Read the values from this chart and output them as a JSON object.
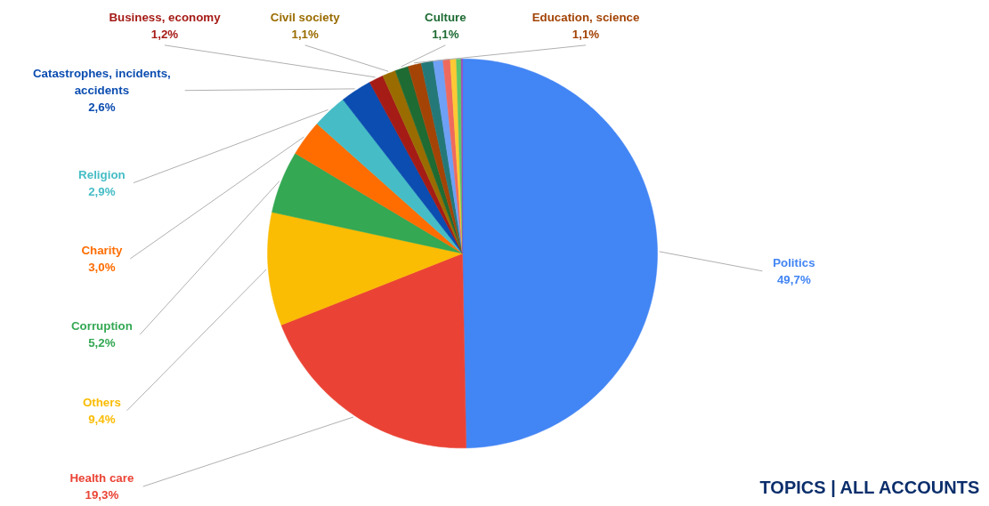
{
  "chart_data": {
    "type": "pie",
    "title": "TOPICS | ALL ACCOUNTS",
    "categories": [
      "Politics",
      "Health care",
      "Others",
      "Corruption",
      "Charity",
      "Religion",
      "Catastrophes, incidents, accidents",
      "Business, economy",
      "Civil society",
      "Culture",
      "Education, science",
      null,
      null,
      null,
      null,
      null,
      null
    ],
    "values": [
      49.7,
      19.3,
      9.4,
      5.2,
      3.0,
      2.9,
      2.6,
      1.2,
      1.1,
      1.1,
      1.1,
      1.0,
      0.8,
      0.6,
      0.5,
      0.4,
      0.1
    ],
    "colors": [
      "#4285f4",
      "#ea4335",
      "#fbbc04",
      "#34a853",
      "#ff6d01",
      "#46bdc6",
      "#0b4db0",
      "#a51b16",
      "#9a6c00",
      "#1e6b33",
      "#a34406",
      "#257878",
      "#6ea0f6",
      "#ef6a5e",
      "#fcc934",
      "#5bc46a",
      "#9b3fbf"
    ],
    "value_labels": [
      "49,7%",
      "19,3%",
      "9,4%",
      "5,2%",
      "3,0%",
      "2,9%",
      "2,6%",
      "1,2%",
      "1,1%",
      "1,1%",
      "1,1%",
      null,
      null,
      null,
      null,
      null,
      null
    ]
  }
}
